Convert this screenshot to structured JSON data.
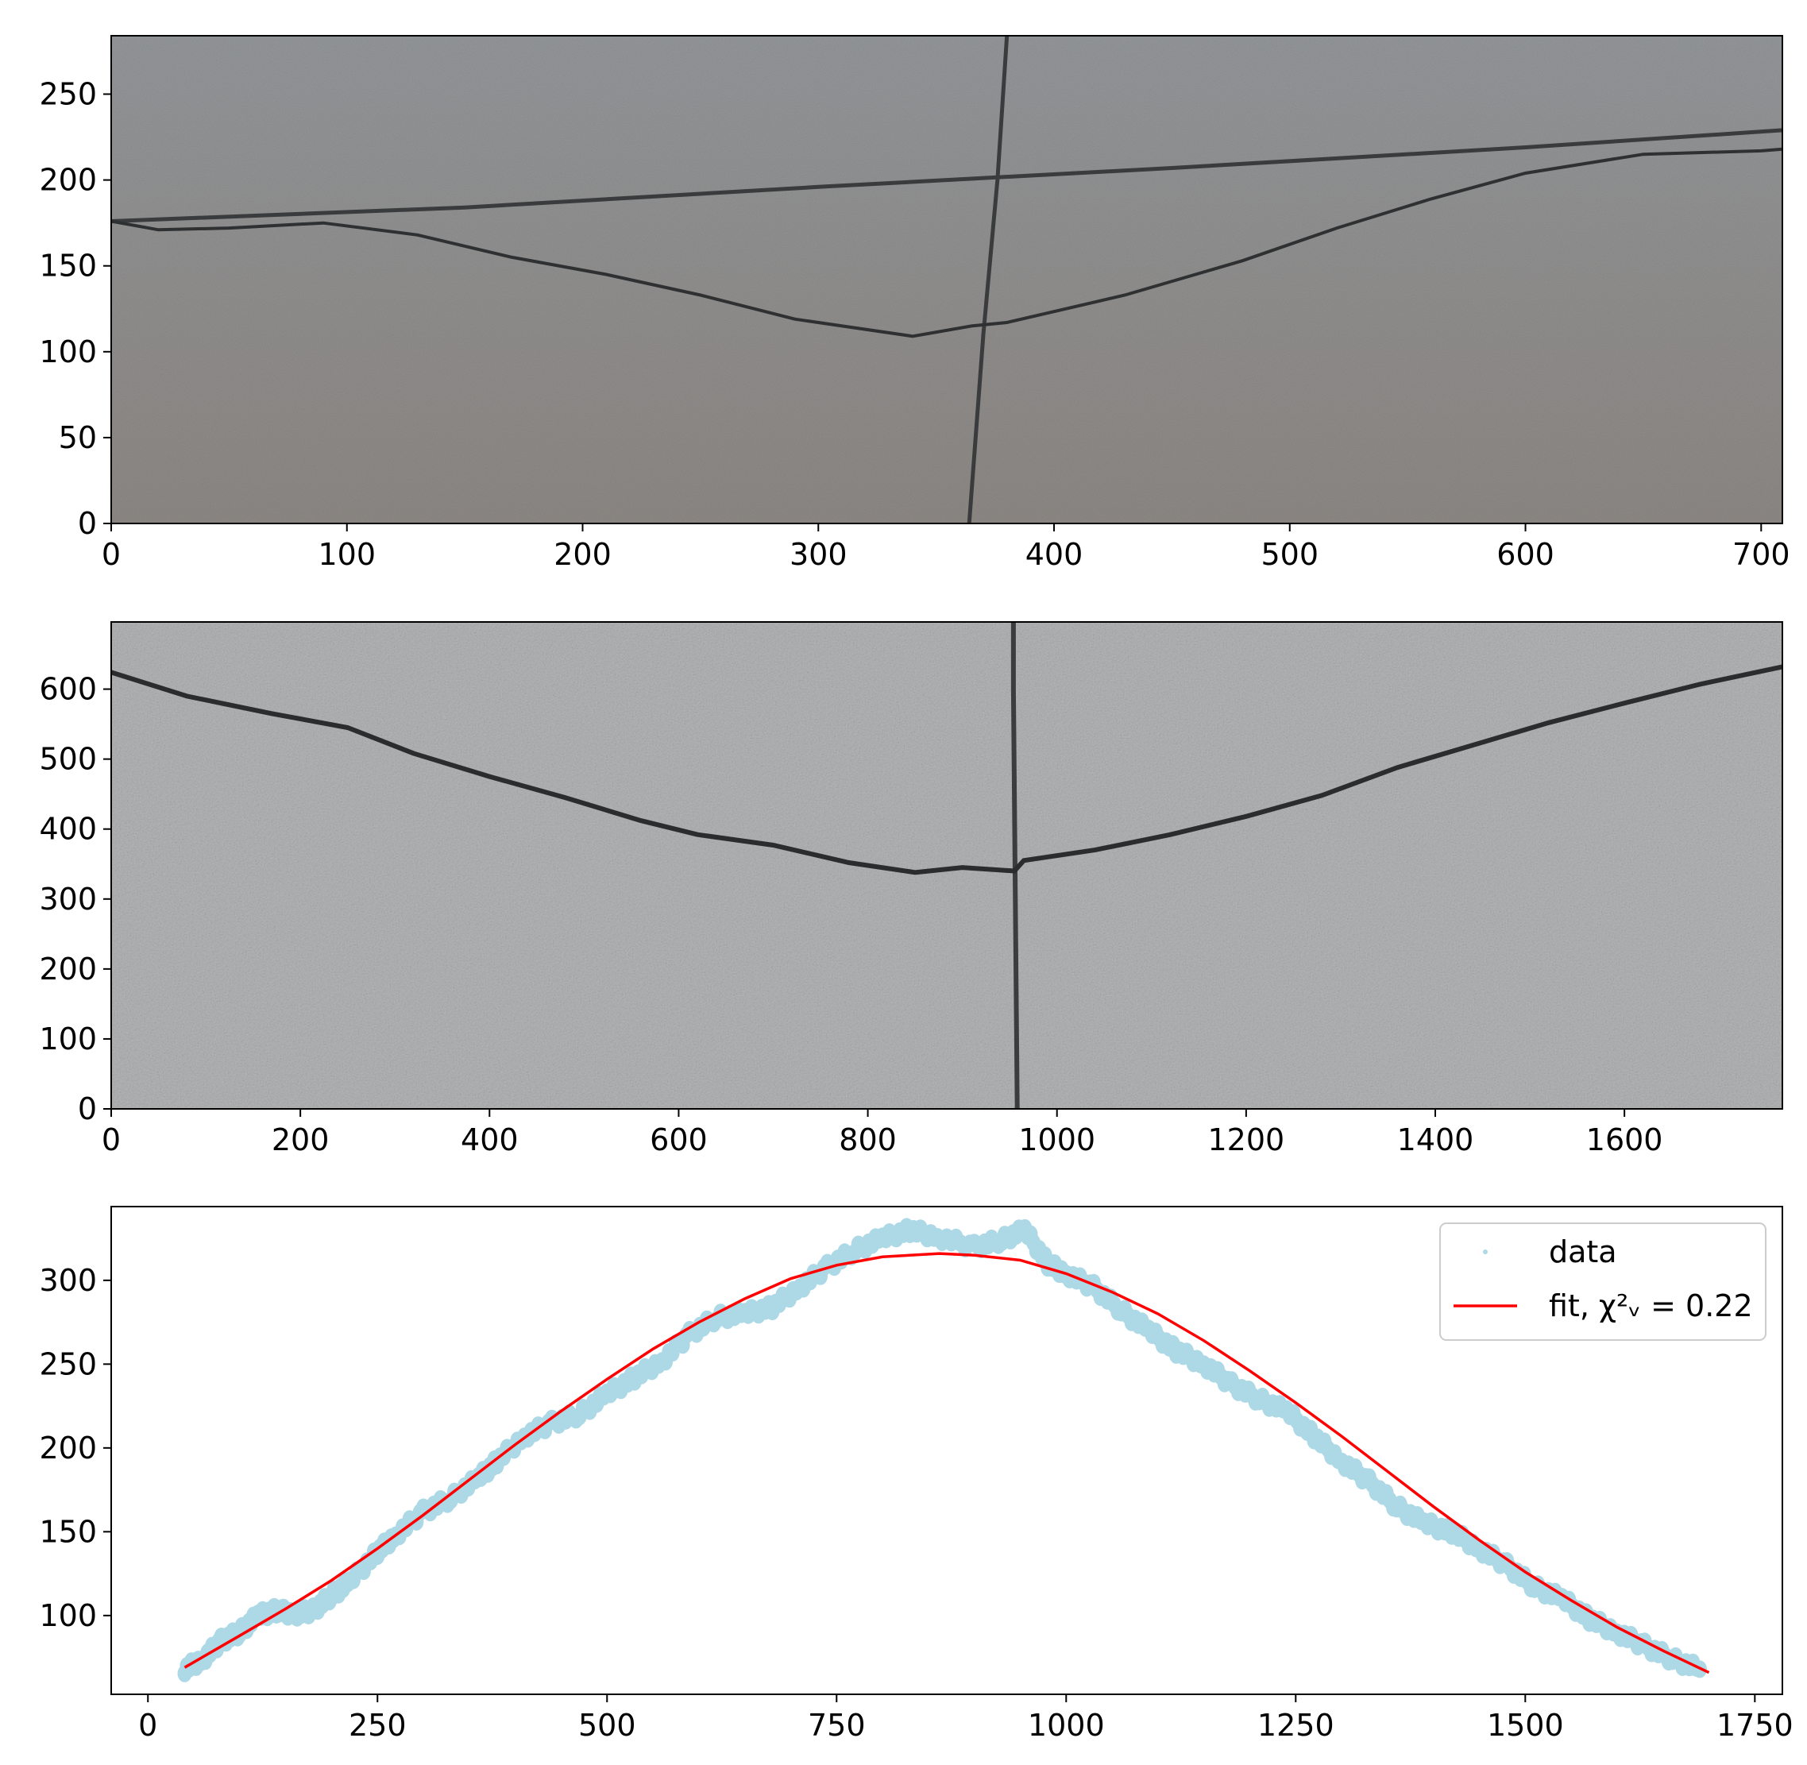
{
  "figure": {
    "background": "#ffffff"
  },
  "panels": [
    {
      "id": "raw-image",
      "kind": "image",
      "colors": {
        "base": "#8d8f8f",
        "top_shade": "#94979a",
        "bottom_shade": "#8e8985",
        "crack": "#2e3032",
        "joint": "#3a3b3d"
      },
      "x_ticks": [
        "0",
        "100",
        "200",
        "300",
        "400",
        "500",
        "600",
        "700"
      ],
      "y_ticks": [
        "0",
        "50",
        "100",
        "150",
        "200",
        "250"
      ],
      "x_tick_values": [
        0,
        100,
        200,
        300,
        400,
        500,
        600,
        700
      ],
      "y_tick_values": [
        0,
        50,
        100,
        150,
        200,
        250
      ],
      "xlim": [
        0,
        709
      ],
      "ylim": [
        284,
        0
      ]
    },
    {
      "id": "enhanced-image",
      "kind": "image",
      "colors": {
        "base": "#b4b5b6",
        "crack": "#2b2c2e",
        "joint": "#3b3c3e"
      },
      "x_ticks": [
        "0",
        "200",
        "400",
        "600",
        "800",
        "1000",
        "1200",
        "1400",
        "1600"
      ],
      "y_ticks": [
        "0",
        "100",
        "200",
        "300",
        "400",
        "500",
        "600"
      ],
      "x_tick_values": [
        0,
        200,
        400,
        600,
        800,
        1000,
        1200,
        1400,
        1600
      ],
      "y_tick_values": [
        0,
        100,
        200,
        300,
        400,
        500,
        600
      ],
      "xlim": [
        0,
        1767
      ],
      "ylim": [
        696,
        0
      ]
    }
  ],
  "chart_data": {
    "type": "scatter",
    "x_ticks": [
      "0",
      "250",
      "500",
      "750",
      "1000",
      "1250",
      "1500",
      "1750"
    ],
    "y_ticks": [
      "100",
      "150",
      "200",
      "250",
      "300"
    ],
    "x_tick_values": [
      0,
      250,
      500,
      750,
      1000,
      1250,
      1500,
      1750
    ],
    "y_tick_values": [
      100,
      150,
      200,
      250,
      300
    ],
    "xlim": [
      -40,
      1780
    ],
    "ylim": [
      53,
      344
    ],
    "legend": {
      "position": "top-right"
    },
    "series": [
      {
        "name": "data",
        "kind": "scatter",
        "color": "#add8e6",
        "points": [
          [
            40,
            68
          ],
          [
            60,
            74
          ],
          [
            80,
            85
          ],
          [
            100,
            90
          ],
          [
            120,
            100
          ],
          [
            140,
            103
          ],
          [
            160,
            101
          ],
          [
            180,
            103
          ],
          [
            200,
            112
          ],
          [
            220,
            120
          ],
          [
            250,
            138
          ],
          [
            270,
            148
          ],
          [
            300,
            162
          ],
          [
            330,
            170
          ],
          [
            360,
            182
          ],
          [
            380,
            192
          ],
          [
            410,
            207
          ],
          [
            440,
            215
          ],
          [
            470,
            220
          ],
          [
            500,
            232
          ],
          [
            530,
            242
          ],
          [
            560,
            252
          ],
          [
            590,
            268
          ],
          [
            620,
            278
          ],
          [
            650,
            280
          ],
          [
            680,
            284
          ],
          [
            710,
            296
          ],
          [
            740,
            308
          ],
          [
            770,
            318
          ],
          [
            800,
            325
          ],
          [
            830,
            330
          ],
          [
            860,
            326
          ],
          [
            900,
            320
          ],
          [
            930,
            324
          ],
          [
            955,
            330
          ],
          [
            980,
            310
          ],
          [
            1000,
            304
          ],
          [
            1030,
            296
          ],
          [
            1060,
            282
          ],
          [
            1090,
            270
          ],
          [
            1120,
            258
          ],
          [
            1150,
            250
          ],
          [
            1180,
            238
          ],
          [
            1210,
            229
          ],
          [
            1240,
            222
          ],
          [
            1270,
            207
          ],
          [
            1300,
            192
          ],
          [
            1330,
            180
          ],
          [
            1360,
            165
          ],
          [
            1390,
            155
          ],
          [
            1420,
            150
          ],
          [
            1450,
            140
          ],
          [
            1480,
            130
          ],
          [
            1510,
            117
          ],
          [
            1540,
            110
          ],
          [
            1570,
            98
          ],
          [
            1600,
            90
          ],
          [
            1630,
            82
          ],
          [
            1660,
            74
          ],
          [
            1690,
            68
          ]
        ]
      },
      {
        "name": "fit, χ²ᵥ = 0.22",
        "kind": "line",
        "color": "#ff0000",
        "x": [
          40,
          100,
          150,
          200,
          250,
          300,
          350,
          400,
          450,
          500,
          550,
          600,
          650,
          700,
          750,
          800,
          862,
          900,
          950,
          1000,
          1050,
          1100,
          1150,
          1200,
          1250,
          1300,
          1350,
          1400,
          1450,
          1500,
          1550,
          1600,
          1650,
          1700
        ],
        "y": [
          69,
          88,
          104,
          121,
          140,
          160,
          181,
          202,
          222,
          241,
          259,
          275,
          289,
          301,
          309,
          314,
          316,
          315,
          312,
          304,
          293,
          280,
          264,
          246,
          227,
          207,
          186,
          165,
          145,
          126,
          109,
          93,
          79,
          66
        ]
      }
    ]
  }
}
